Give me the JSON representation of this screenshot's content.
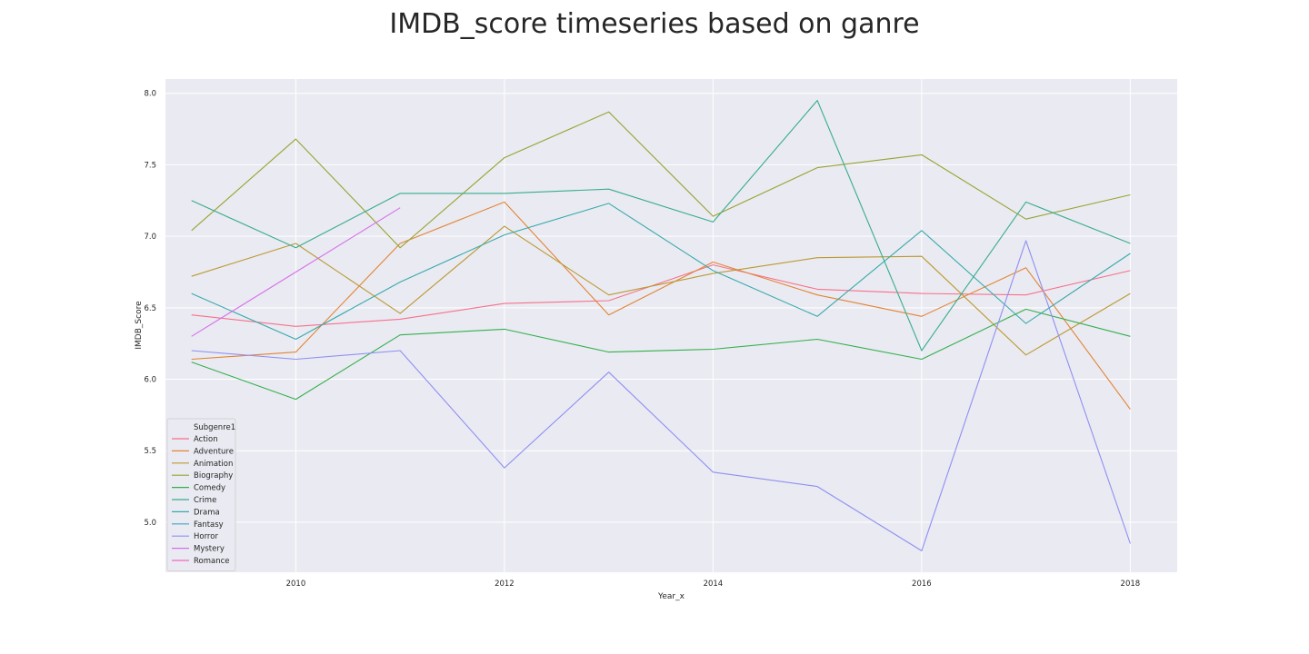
{
  "chart_data": {
    "type": "line",
    "title": "IMDB_score timeseries based on ganre",
    "xlabel": "Year_x",
    "ylabel": "IMDB_Score",
    "xlim": [
      2008.75,
      2018.45
    ],
    "ylim": [
      4.65,
      8.1
    ],
    "x_ticks": [
      2010,
      2012,
      2014,
      2016,
      2018
    ],
    "y_ticks": [
      5.0,
      5.5,
      6.0,
      6.5,
      7.0,
      7.5,
      8.0
    ],
    "y_tick_labels": [
      "5.0",
      "5.5",
      "6.0",
      "6.5",
      "7.0",
      "7.5",
      "8.0"
    ],
    "grid": true,
    "legend": {
      "title": "Subgenre1",
      "position": "lower-left"
    },
    "series": [
      {
        "name": "Action",
        "color": "#f77189",
        "x": [
          2009,
          2010,
          2011,
          2012,
          2013,
          2014,
          2015,
          2016,
          2017,
          2018
        ],
        "y": [
          6.45,
          6.37,
          6.42,
          6.53,
          6.55,
          6.8,
          6.63,
          6.6,
          6.59,
          6.76
        ]
      },
      {
        "name": "Adventure",
        "color": "#e38434",
        "x": [
          2009,
          2010,
          2011,
          2012,
          2013,
          2014,
          2015,
          2016,
          2017,
          2018
        ],
        "y": [
          6.14,
          6.19,
          6.95,
          7.24,
          6.45,
          6.82,
          6.59,
          6.44,
          6.78,
          5.79
        ]
      },
      {
        "name": "Animation",
        "color": "#ba9a32",
        "x": [
          2009,
          2010,
          2011,
          2012,
          2013,
          2014,
          2015,
          2016,
          2017,
          2018
        ],
        "y": [
          6.72,
          6.95,
          6.46,
          7.07,
          6.59,
          6.74,
          6.85,
          6.86,
          6.17,
          6.6
        ]
      },
      {
        "name": "Biography",
        "color": "#97a431",
        "x": [
          2009,
          2010,
          2011,
          2012,
          2013,
          2014,
          2015,
          2016,
          2017,
          2018
        ],
        "y": [
          7.04,
          7.68,
          6.92,
          7.55,
          7.87,
          7.14,
          7.48,
          7.57,
          7.12,
          7.29
        ]
      },
      {
        "name": "Comedy",
        "color": "#33b04d",
        "x": [
          2009,
          2010,
          2011,
          2012,
          2013,
          2014,
          2015,
          2016,
          2017,
          2018
        ],
        "y": [
          6.12,
          5.86,
          6.31,
          6.35,
          6.19,
          6.21,
          6.28,
          6.14,
          6.49,
          6.3
        ]
      },
      {
        "name": "Crime",
        "color": "#36ad8c",
        "x": [
          2009,
          2010,
          2011,
          2012,
          2013,
          2014,
          2015,
          2016,
          2017,
          2018
        ],
        "y": [
          7.25,
          6.92,
          7.3,
          7.3,
          7.33,
          7.1,
          7.95,
          6.2,
          7.24,
          6.95
        ]
      },
      {
        "name": "Drama",
        "color": "#38aaac",
        "x": [
          2009,
          2010,
          2011,
          2012,
          2013,
          2014,
          2015,
          2016,
          2017,
          2018
        ],
        "y": [
          6.6,
          6.28,
          6.68,
          7.01,
          7.23,
          6.76,
          6.44,
          7.04,
          6.39,
          6.88
        ]
      },
      {
        "name": "Fantasy",
        "color": "#3aa5c4",
        "x": [],
        "y": []
      },
      {
        "name": "Horror",
        "color": "#8f8ff2",
        "x": [
          2009,
          2010,
          2011,
          2012,
          2013,
          2014,
          2015,
          2016,
          2017,
          2018
        ],
        "y": [
          6.2,
          6.14,
          6.2,
          5.38,
          6.05,
          5.35,
          5.25,
          4.8,
          6.97,
          4.85
        ]
      },
      {
        "name": "Mystery",
        "color": "#d670eb",
        "x": [
          2009,
          2010,
          2011
        ],
        "y": [
          6.3,
          6.75,
          7.2
        ]
      },
      {
        "name": "Romance",
        "color": "#f566bf",
        "x": [],
        "y": []
      }
    ]
  }
}
